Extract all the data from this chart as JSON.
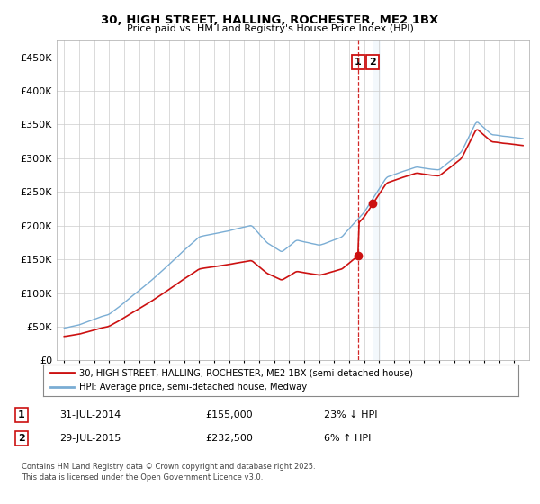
{
  "title": "30, HIGH STREET, HALLING, ROCHESTER, ME2 1BX",
  "subtitle": "Price paid vs. HM Land Registry's House Price Index (HPI)",
  "footer": "Contains HM Land Registry data © Crown copyright and database right 2025.\nThis data is licensed under the Open Government Licence v3.0.",
  "legend_line1": "30, HIGH STREET, HALLING, ROCHESTER, ME2 1BX (semi-detached house)",
  "legend_line2": "HPI: Average price, semi-detached house, Medway",
  "transaction1_label": "1",
  "transaction1_date": "31-JUL-2014",
  "transaction1_price": "£155,000",
  "transaction1_hpi": "23% ↓ HPI",
  "transaction1_year": 2014.58,
  "transaction2_label": "2",
  "transaction2_date": "29-JUL-2015",
  "transaction2_price": "£232,500",
  "transaction2_hpi": "6% ↑ HPI",
  "transaction2_year": 2015.58,
  "hpi_color": "#7aadd4",
  "price_color": "#cc1111",
  "dashed_color": "#cc1111",
  "shade_color": "#d0e4f7",
  "ylim": [
    0,
    475000
  ],
  "yticks": [
    0,
    50000,
    100000,
    150000,
    200000,
    250000,
    300000,
    350000,
    400000,
    450000
  ],
  "grid_color": "#cccccc",
  "background_color": "#ffffff",
  "xstart": 1995,
  "xend": 2026
}
